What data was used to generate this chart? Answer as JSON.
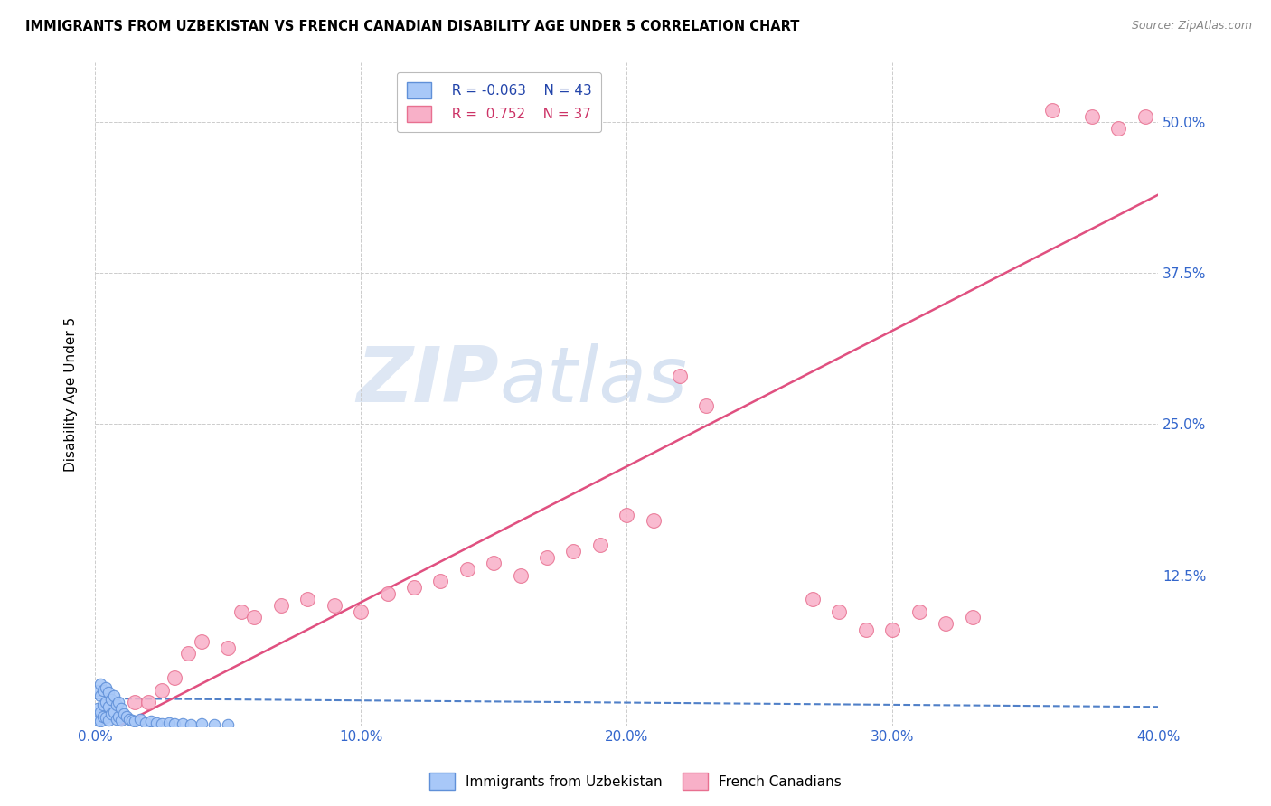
{
  "title": "IMMIGRANTS FROM UZBEKISTAN VS FRENCH CANADIAN DISABILITY AGE UNDER 5 CORRELATION CHART",
  "source": "Source: ZipAtlas.com",
  "ylabel": "Disability Age Under 5",
  "xlim": [
    0.0,
    0.4
  ],
  "ylim": [
    0.0,
    0.55
  ],
  "x_ticks": [
    0.0,
    0.1,
    0.2,
    0.3,
    0.4
  ],
  "x_tick_labels": [
    "0.0%",
    "10.0%",
    "20.0%",
    "30.0%",
    "40.0%"
  ],
  "y_ticks": [
    0.0,
    0.125,
    0.25,
    0.375,
    0.5
  ],
  "y_tick_labels": [
    "",
    "12.5%",
    "25.0%",
    "37.5%",
    "50.0%"
  ],
  "legend_r1": "R = -0.063",
  "legend_n1": "N = 43",
  "legend_r2": "R =  0.752",
  "legend_n2": "N = 37",
  "color_uzbek": "#a8c8f8",
  "color_uzbek_edge": "#6090d8",
  "color_french": "#f8b0c8",
  "color_french_edge": "#e87090",
  "color_uzbek_line": "#5080c8",
  "color_french_line": "#e05080",
  "watermark_zip": "ZIP",
  "watermark_atlas": "atlas",
  "background_color": "#ffffff",
  "uzbek_x": [
    0.001,
    0.001,
    0.001,
    0.002,
    0.002,
    0.002,
    0.002,
    0.003,
    0.003,
    0.003,
    0.004,
    0.004,
    0.004,
    0.005,
    0.005,
    0.005,
    0.006,
    0.006,
    0.007,
    0.007,
    0.008,
    0.008,
    0.009,
    0.009,
    0.01,
    0.01,
    0.011,
    0.012,
    0.013,
    0.014,
    0.015,
    0.017,
    0.019,
    0.021,
    0.023,
    0.025,
    0.028,
    0.03,
    0.033,
    0.036,
    0.04,
    0.045,
    0.05
  ],
  "uzbek_y": [
    0.03,
    0.015,
    0.005,
    0.035,
    0.025,
    0.012,
    0.004,
    0.03,
    0.018,
    0.008,
    0.032,
    0.02,
    0.007,
    0.028,
    0.016,
    0.005,
    0.022,
    0.01,
    0.025,
    0.012,
    0.018,
    0.006,
    0.02,
    0.008,
    0.015,
    0.005,
    0.01,
    0.008,
    0.006,
    0.005,
    0.004,
    0.006,
    0.003,
    0.004,
    0.003,
    0.002,
    0.003,
    0.002,
    0.002,
    0.001,
    0.002,
    0.001,
    0.001
  ],
  "french_x": [
    0.015,
    0.02,
    0.025,
    0.03,
    0.035,
    0.04,
    0.05,
    0.055,
    0.06,
    0.07,
    0.08,
    0.09,
    0.1,
    0.11,
    0.12,
    0.13,
    0.14,
    0.15,
    0.16,
    0.17,
    0.18,
    0.19,
    0.2,
    0.21,
    0.22,
    0.23,
    0.27,
    0.28,
    0.29,
    0.3,
    0.31,
    0.32,
    0.33,
    0.36,
    0.375,
    0.385,
    0.395
  ],
  "french_y": [
    0.02,
    0.02,
    0.03,
    0.04,
    0.06,
    0.07,
    0.065,
    0.095,
    0.09,
    0.1,
    0.105,
    0.1,
    0.095,
    0.11,
    0.115,
    0.12,
    0.13,
    0.135,
    0.125,
    0.14,
    0.145,
    0.15,
    0.175,
    0.17,
    0.29,
    0.265,
    0.105,
    0.095,
    0.08,
    0.08,
    0.095,
    0.085,
    0.09,
    0.51,
    0.505,
    0.495,
    0.505
  ]
}
